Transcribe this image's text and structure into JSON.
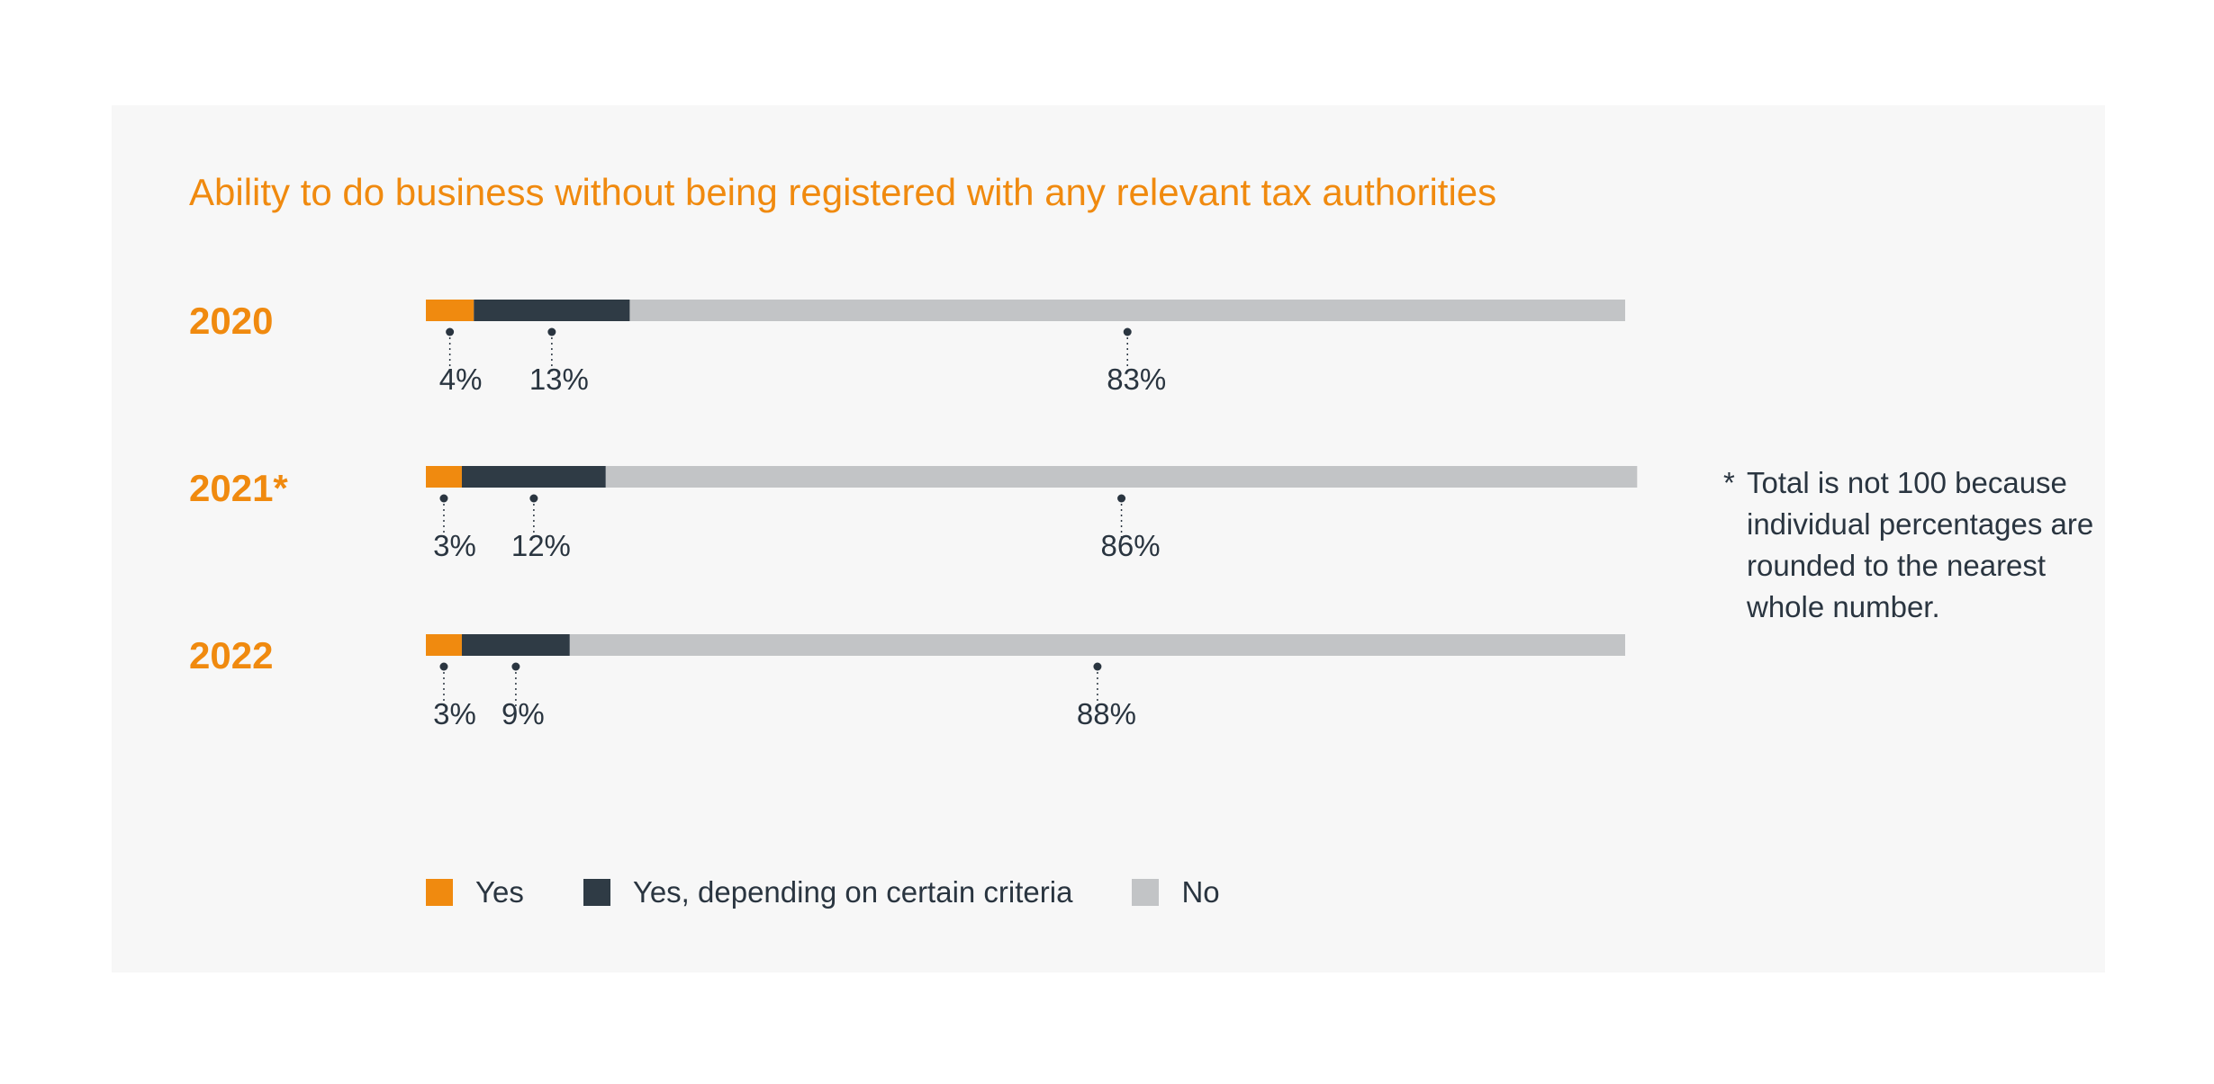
{
  "colors": {
    "yes": "#f08a0f",
    "yes_criteria": "#2f3b45",
    "no": "#c2c4c6",
    "accent": "#f08a0f",
    "text": "#2a3540",
    "panel": "#f7f7f7"
  },
  "chart_data": {
    "type": "bar",
    "orientation": "horizontal",
    "stacked": true,
    "title": "Ability to do business without being registered with any relevant tax authorities",
    "categories": [
      "2020",
      "2021*",
      "2022"
    ],
    "series": [
      {
        "name": "Yes",
        "values": [
          4,
          3,
          3
        ],
        "labels": [
          "4%",
          "3%",
          "3%"
        ]
      },
      {
        "name": "Yes, depending on certain criteria",
        "values": [
          13,
          12,
          9
        ],
        "labels": [
          "13%",
          "12%",
          "9%"
        ]
      },
      {
        "name": "No",
        "values": [
          83,
          86,
          88
        ],
        "labels": [
          "83%",
          "86%",
          "88%"
        ]
      }
    ],
    "xlim": [
      0,
      100
    ],
    "legend_position": "bottom",
    "grid": false,
    "footnote": "Total is not 100 because individual percentages are rounded to the nearest whole number.",
    "footnote_marker": "*"
  },
  "legend": [
    {
      "label": "Yes",
      "color": "#f08a0f"
    },
    {
      "label": "Yes, depending on certain criteria",
      "color": "#2f3b45"
    },
    {
      "label": "No",
      "color": "#c2c4c6"
    }
  ]
}
